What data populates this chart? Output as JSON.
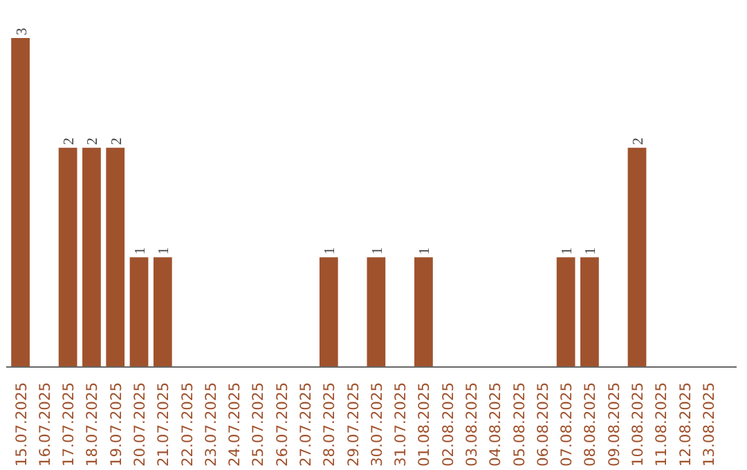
{
  "chart_data": {
    "type": "bar",
    "categories": [
      "15.07.2025",
      "16.07.2025",
      "17.07.2025",
      "18.07.2025",
      "19.07.2025",
      "20.07.2025",
      "21.07.2025",
      "22.07.2025",
      "23.07.2025",
      "24.07.2025",
      "25.07.2025",
      "26.07.2025",
      "27.07.2025",
      "28.07.2025",
      "29.07.2025",
      "30.07.2025",
      "31.07.2025",
      "01.08.2025",
      "02.08.2025",
      "03.08.2025",
      "04.08.2025",
      "05.08.2025",
      "06.08.2025",
      "07.08.2025",
      "08.08.2025",
      "09.08.2025",
      "10.08.2025",
      "11.08.2025",
      "12.08.2025",
      "13.08.2025"
    ],
    "values": [
      3,
      0,
      2,
      2,
      2,
      1,
      1,
      0,
      0,
      0,
      0,
      0,
      0,
      1,
      0,
      1,
      0,
      1,
      0,
      0,
      0,
      0,
      0,
      1,
      1,
      0,
      2,
      0,
      0,
      0
    ],
    "value_labels": [
      "3",
      null,
      "2",
      "2",
      "2",
      "1",
      "1",
      null,
      null,
      null,
      null,
      null,
      null,
      "1",
      null,
      "1",
      null,
      "1",
      null,
      null,
      null,
      null,
      null,
      "1",
      "1",
      null,
      "2",
      null,
      null,
      null
    ],
    "color": "#a0522d"
  }
}
